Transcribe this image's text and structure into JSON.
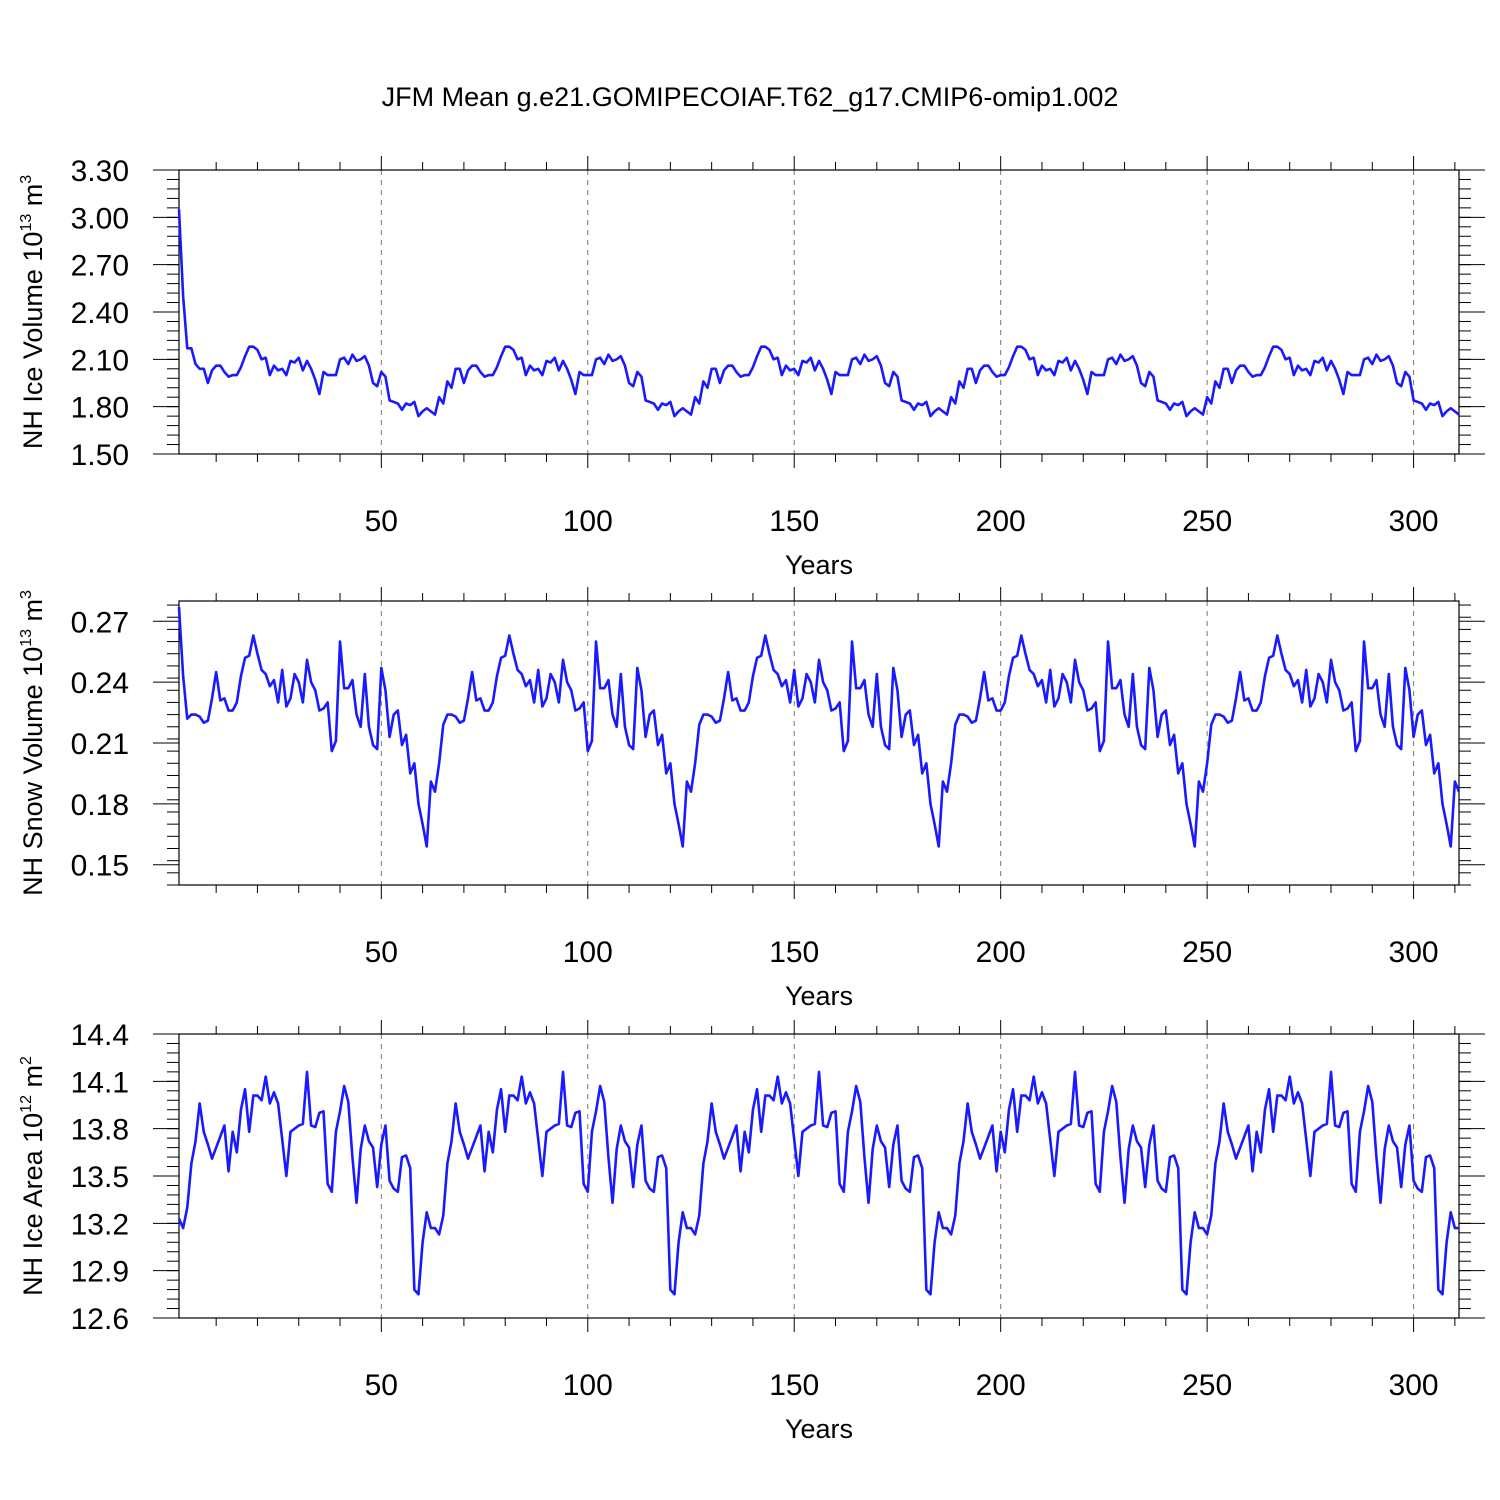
{
  "title": "JFM Mean g.e21.GOMIPECOIAF.T62_g17.CMIP6-omip1.002",
  "chart_data": [
    {
      "type": "line",
      "xlabel": "Years",
      "ylabel_main": "NH Ice Volume 10",
      "ylabel_exp": "13",
      "ylabel_unit": " m",
      "ylabel_unit_exp": "3",
      "xlim": [
        1,
        311
      ],
      "ylim": [
        1.5,
        3.3
      ],
      "yticks": [
        1.5,
        1.8,
        2.1,
        2.4,
        2.7,
        3.0,
        3.3
      ],
      "ytick_labels": [
        "1.50",
        "1.80",
        "2.10",
        "2.40",
        "2.70",
        "3.00",
        "3.30"
      ],
      "xticks": [
        50,
        100,
        150,
        200,
        250,
        300
      ],
      "xtick_labels": [
        "50",
        "100",
        "150",
        "200",
        "250",
        "300"
      ],
      "gridlines_x": [
        50,
        100,
        150,
        200,
        250,
        300
      ],
      "line_color": "#1a1aff",
      "series": [
        {
          "name": "NH Ice Volume",
          "x_start": 1,
          "x_step": 1,
          "cycle_period": 62,
          "head_values": [
            3.05,
            2.5,
            2.17,
            2.17,
            2.07
          ],
          "cycle_values": [
            2.04,
            2.04,
            1.95,
            2.03,
            2.06,
            2.06,
            2.02,
            1.99,
            2.0,
            2.0,
            2.05,
            2.12,
            2.18,
            2.18,
            2.16,
            2.1,
            2.11,
            2.0,
            2.06,
            2.03,
            2.04,
            2.0,
            2.09,
            2.08,
            2.11,
            2.03,
            2.09,
            2.04,
            1.97,
            1.88,
            2.02,
            2.0,
            2.0,
            2.0,
            2.1,
            2.11,
            2.07,
            2.13,
            2.09,
            2.1,
            2.12,
            2.06,
            1.95,
            1.93,
            2.02,
            1.99,
            1.84,
            1.83,
            1.82,
            1.78,
            1.82,
            1.81,
            1.83,
            1.74,
            1.77,
            1.79,
            1.77,
            1.75,
            1.86,
            1.82,
            1.96,
            1.92
          ]
        }
      ]
    },
    {
      "type": "line",
      "xlabel": "Years",
      "ylabel_main": "NH Snow Volume 10",
      "ylabel_exp": "13",
      "ylabel_unit": " m",
      "ylabel_unit_exp": "3",
      "xlim": [
        1,
        311
      ],
      "ylim": [
        0.14,
        0.28
      ],
      "yticks": [
        0.15,
        0.18,
        0.21,
        0.24,
        0.27
      ],
      "ytick_labels": [
        "0.15",
        "0.18",
        "0.21",
        "0.24",
        "0.27"
      ],
      "xticks": [
        50,
        100,
        150,
        200,
        250,
        300
      ],
      "xtick_labels": [
        "50",
        "100",
        "150",
        "200",
        "250",
        "300"
      ],
      "gridlines_x": [
        50,
        100,
        150,
        200,
        250,
        300
      ],
      "line_color": "#1a1aff",
      "series": [
        {
          "name": "NH Snow Volume",
          "x_start": 1,
          "x_step": 1,
          "cycle_period": 62,
          "head_values": [
            0.277,
            0.243,
            0.222
          ],
          "cycle_values": [
            0.224,
            0.224,
            0.223,
            0.22,
            0.221,
            0.232,
            0.245,
            0.231,
            0.232,
            0.226,
            0.226,
            0.23,
            0.243,
            0.252,
            0.253,
            0.263,
            0.254,
            0.246,
            0.244,
            0.238,
            0.241,
            0.23,
            0.246,
            0.228,
            0.232,
            0.244,
            0.24,
            0.23,
            0.251,
            0.24,
            0.236,
            0.226,
            0.227,
            0.23,
            0.206,
            0.211,
            0.26,
            0.237,
            0.237,
            0.241,
            0.224,
            0.218,
            0.244,
            0.218,
            0.209,
            0.207,
            0.247,
            0.236,
            0.213,
            0.224,
            0.226,
            0.209,
            0.214,
            0.195,
            0.2,
            0.18,
            0.17,
            0.159,
            0.191,
            0.186,
            0.2,
            0.219
          ]
        }
      ]
    },
    {
      "type": "line",
      "xlabel": "Years",
      "ylabel_main": "NH Ice Area 10",
      "ylabel_exp": "12",
      "ylabel_unit": " m",
      "ylabel_unit_exp": "2",
      "xlim": [
        1,
        311
      ],
      "ylim": [
        12.6,
        14.4
      ],
      "yticks": [
        12.6,
        12.9,
        13.2,
        13.5,
        13.8,
        14.1,
        14.4
      ],
      "ytick_labels": [
        "12.6",
        "12.9",
        "13.2",
        "13.5",
        "13.8",
        "14.1",
        "14.4"
      ],
      "xticks": [
        50,
        100,
        150,
        200,
        250,
        300
      ],
      "xtick_labels": [
        "50",
        "100",
        "150",
        "200",
        "250",
        "300"
      ],
      "gridlines_x": [
        50,
        100,
        150,
        200,
        250,
        300
      ],
      "line_color": "#1a1aff",
      "series": [
        {
          "name": "NH Ice Area",
          "x_start": 1,
          "x_step": 1,
          "cycle_period": 62,
          "head_values": [
            13.23,
            13.17,
            13.3
          ],
          "cycle_values": [
            13.58,
            13.72,
            13.96,
            13.78,
            13.7,
            13.61,
            13.68,
            13.75,
            13.82,
            13.53,
            13.78,
            13.65,
            13.92,
            14.05,
            13.78,
            14.01,
            14.01,
            13.98,
            14.13,
            13.96,
            14.03,
            13.96,
            13.73,
            13.5,
            13.78,
            13.8,
            13.82,
            13.83,
            14.16,
            13.82,
            13.81,
            13.9,
            13.91,
            13.45,
            13.4,
            13.78,
            13.91,
            14.07,
            13.97,
            13.62,
            13.33,
            13.67,
            13.82,
            13.72,
            13.68,
            13.43,
            13.7,
            13.82,
            13.47,
            13.42,
            13.4,
            13.62,
            13.63,
            13.55,
            12.78,
            12.75,
            13.08,
            13.27,
            13.17,
            13.17,
            13.13,
            13.25
          ]
        }
      ]
    }
  ]
}
